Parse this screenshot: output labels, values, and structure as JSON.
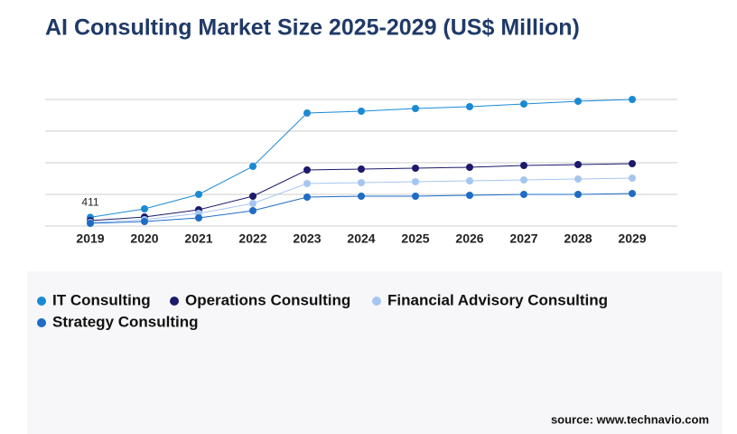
{
  "chart_data": {
    "type": "line",
    "title": "AI Consulting Market Size 2025-2029 (US$ Million)",
    "categories": [
      "2019",
      "2020",
      "2021",
      "2022",
      "2023",
      "2024",
      "2025",
      "2026",
      "2027",
      "2028",
      "2029"
    ],
    "series": [
      {
        "name": "IT Consulting",
        "color": "#1a8ad4",
        "values": [
          411,
          814,
          1500,
          2829,
          5357,
          5443,
          5571,
          5657,
          5786,
          5914,
          6000
        ],
        "value_labels": [
          "411",
          null,
          null,
          null,
          null,
          null,
          null,
          null,
          null,
          null,
          null
        ]
      },
      {
        "name": "Operations Consulting",
        "color": "#1c1a6b",
        "values": [
          257,
          429,
          771,
          1414,
          2657,
          2700,
          2743,
          2786,
          2871,
          2914,
          2957
        ]
      },
      {
        "name": "Financial Advisory Consulting",
        "color": "#a6c6f0",
        "values": [
          171,
          300,
          600,
          1071,
          2014,
          2057,
          2100,
          2143,
          2186,
          2229,
          2271
        ]
      },
      {
        "name": "Strategy Consulting",
        "color": "#1f6cc6",
        "values": [
          129,
          214,
          386,
          729,
          1371,
          1414,
          1414,
          1457,
          1500,
          1500,
          1543
        ]
      }
    ],
    "ylim": [
      0,
      6000
    ],
    "yticks": [
      0,
      1500,
      3000,
      4500,
      6000
    ],
    "grid": true,
    "source": "source: www.technavio.com"
  }
}
